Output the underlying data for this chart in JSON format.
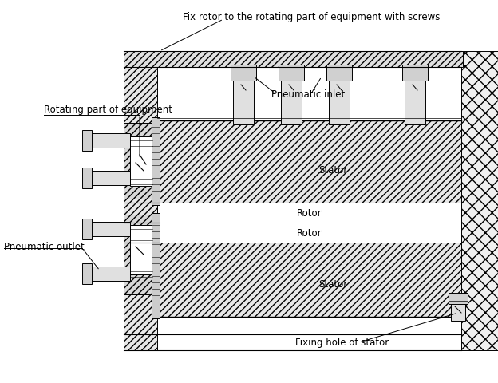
{
  "bg_color": "#ffffff",
  "line_color": "#000000",
  "title_text": "Fix rotor to the rotating part of equipment with screws",
  "labels": {
    "rotating_part": "Rotating part of equipment",
    "pneumatic_inlet": "Pneumatic inlet",
    "pneumatic_outlet": "Pneumatic outlet",
    "stator_top": "Stator",
    "rotor_top": "Rotor",
    "rotor_bottom": "Rotor",
    "stator_bottom": "Stator",
    "fixing_hole": "Fixing hole of stator"
  },
  "figsize": [
    6.24,
    4.81
  ],
  "dpi": 100
}
